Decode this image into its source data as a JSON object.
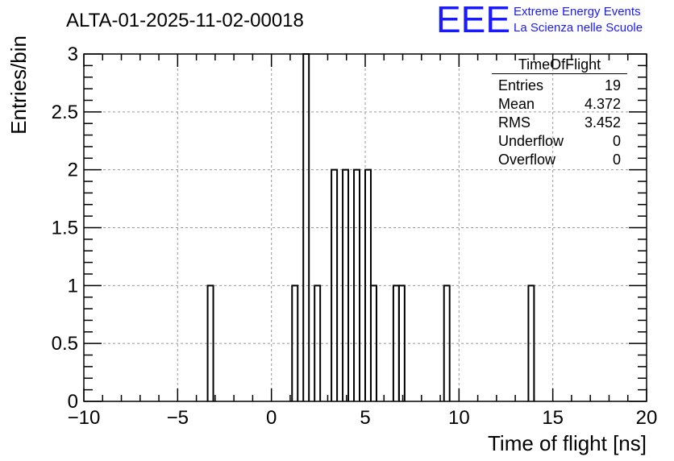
{
  "chart_data": {
    "type": "histogram",
    "title": "ALTA-01-2025-11-02-00018",
    "xlabel": "Time of flight [ns]",
    "ylabel": "Entries/bin",
    "xlim": [
      -10,
      20
    ],
    "ylim": [
      0,
      3
    ],
    "x_ticks": [
      "−10",
      "−5",
      "0",
      "5",
      "10",
      "15",
      "20"
    ],
    "y_ticks": [
      "0",
      "0.5",
      "1",
      "1.5",
      "2",
      "2.5",
      "3"
    ],
    "bin_width": 0.3,
    "grid": true,
    "bins": [
      {
        "x": -3.4,
        "count": 1
      },
      {
        "x": 1.1,
        "count": 1
      },
      {
        "x": 1.7,
        "count": 3
      },
      {
        "x": 2.3,
        "count": 1
      },
      {
        "x": 3.2,
        "count": 2
      },
      {
        "x": 3.8,
        "count": 2
      },
      {
        "x": 4.4,
        "count": 2
      },
      {
        "x": 5.0,
        "count": 2
      },
      {
        "x": 5.3,
        "count": 1
      },
      {
        "x": 6.5,
        "count": 1
      },
      {
        "x": 6.8,
        "count": 1
      },
      {
        "x": 9.2,
        "count": 1
      },
      {
        "x": 13.7,
        "count": 1
      }
    ]
  },
  "stats_box": {
    "title": "TimeOfFlight",
    "rows": [
      {
        "label": "Entries",
        "value": "19"
      },
      {
        "label": "Mean",
        "value": "4.372"
      },
      {
        "label": "RMS",
        "value": "3.452"
      },
      {
        "label": "Underflow",
        "value": "0"
      },
      {
        "label": "Overflow",
        "value": "0"
      }
    ]
  },
  "logo": {
    "text": "EEE",
    "line1": "Extreme Energy Events",
    "line2": "La Scienza nelle Scuole",
    "color": "#1a1aff"
  }
}
